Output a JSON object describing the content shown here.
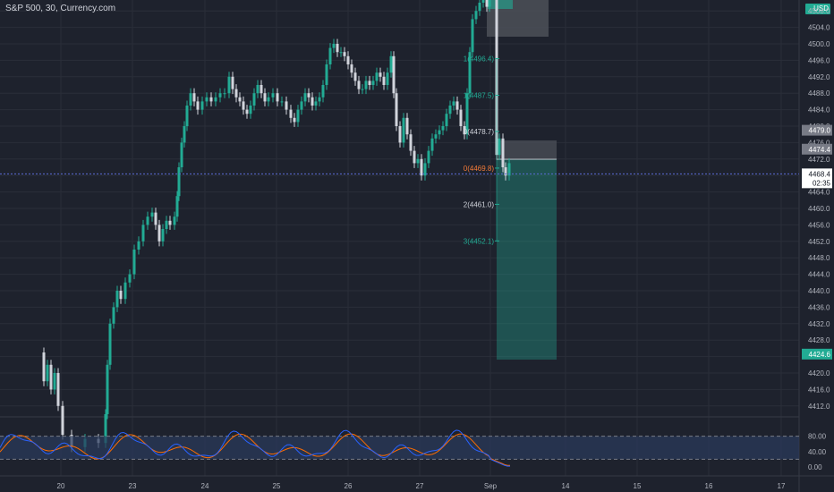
{
  "symbol_title": "S&P 500, 30, Currency.com",
  "currency": "USD",
  "colors": {
    "background": "#1e222d",
    "grid": "#2a2e39",
    "up": "#22ab94",
    "down": "#d1d4dc",
    "current_price_line": "#5b6bd6",
    "position_profit": "#22ab94",
    "position_box": "#4c5058",
    "fib": "#22ab94",
    "fib_base": "#f57c38",
    "rsi_fast": "#2962ff",
    "rsi_slow": "#ff6d00",
    "rsi_band": "#2a3b5c"
  },
  "price_axis": {
    "ticks": [
      "4508.0",
      "4504.0",
      "4500.0",
      "4496.0",
      "4492.0",
      "4488.0",
      "4484.0",
      "4480.0",
      "4476.0",
      "4472.0",
      "4468.0",
      "4464.0",
      "4460.0",
      "4456.0",
      "4452.0",
      "4448.0",
      "4444.0",
      "4440.0",
      "4436.0",
      "4432.0",
      "4428.0",
      "4424.0",
      "4420.0",
      "4416.0",
      "4412.0"
    ]
  },
  "price_labels": {
    "box_top": "4479.0",
    "entry": "4474.4",
    "current": "4468.4",
    "countdown": "02:35",
    "target": "4424.6"
  },
  "fib_levels": [
    {
      "text": "1(4496.4)",
      "price": 4496.4
    },
    {
      "text": "1(4487.5)",
      "price": 4487.5
    },
    {
      "text": "0(4478.7)",
      "price": 4478.7
    },
    {
      "text": "0(4469.8)",
      "price": 4469.8,
      "base": true
    },
    {
      "text": "2(4461.0)",
      "price": 4461.0
    },
    {
      "text": "3(4452.1)",
      "price": 4452.1
    }
  ],
  "date_axis": [
    "20",
    "23",
    "24",
    "25",
    "26",
    "27",
    "Sep",
    "14",
    "15",
    "16",
    "17"
  ],
  "rsi_axis": [
    "80.00",
    "40.00",
    "0.00"
  ]
}
